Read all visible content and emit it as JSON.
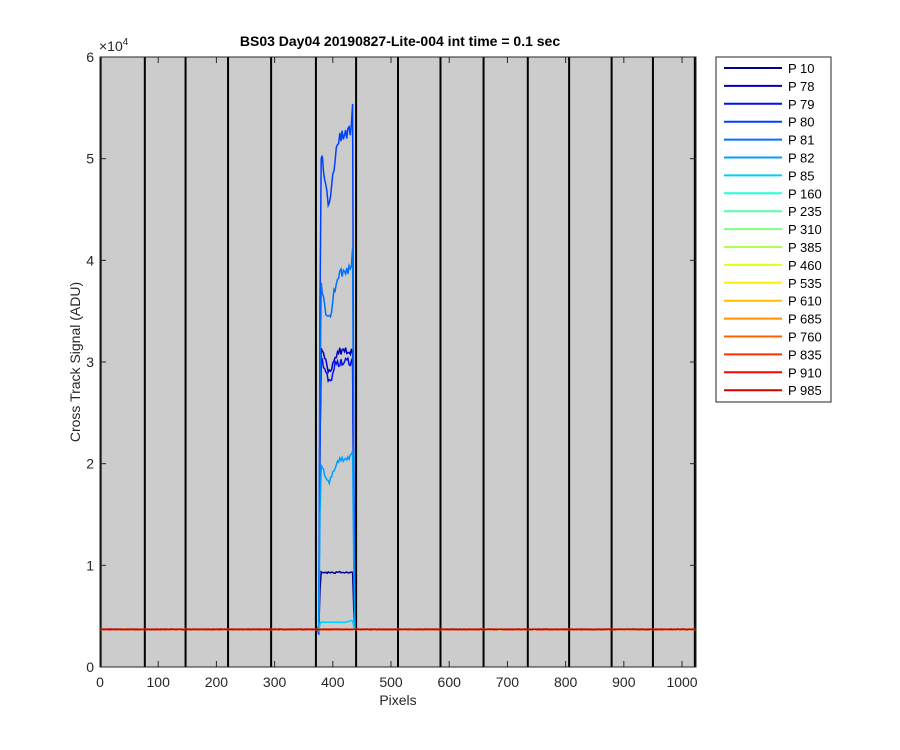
{
  "chart_data": {
    "type": "line",
    "title": "BS03 Day04 20190827-Lite-004 int time = 0.1 sec",
    "xlabel": "Pixels",
    "ylabel": "Cross Track Signal (ADU)",
    "xlim": [
      0,
      1024
    ],
    "ylim": [
      0,
      60000
    ],
    "xticks": [
      0,
      100,
      200,
      300,
      400,
      500,
      600,
      700,
      800,
      900,
      1000
    ],
    "xtick_labels": [
      "0",
      "100",
      "200",
      "300",
      "400",
      "500",
      "600",
      "700",
      "800",
      "900",
      "1000"
    ],
    "yticks": [
      0,
      10000,
      20000,
      30000,
      40000,
      50000,
      60000
    ],
    "ytick_labels": [
      "0",
      "1",
      "2",
      "3",
      "4",
      "5",
      "6"
    ],
    "y_exponent_label": "×10",
    "y_exponent_power": "4",
    "background_color": "#cccccc",
    "grid": false,
    "vertical_dividers_x": [
      1,
      77,
      147,
      220,
      294,
      371,
      440,
      512,
      585,
      659,
      735,
      806,
      879,
      950,
      1022
    ],
    "legend_placement": "outside-top-right",
    "series": [
      {
        "name": "P 10",
        "color": "#00008f",
        "baseline": 3700,
        "plateau": 9300,
        "profile": "flat"
      },
      {
        "name": "P 78",
        "color": "#0000bf",
        "baseline": 3700,
        "plateau": 31000,
        "profile": "mid"
      },
      {
        "name": "P 79",
        "color": "#0010ef",
        "baseline": 3700,
        "plateau": 30000,
        "profile": "mid"
      },
      {
        "name": "P 80",
        "color": "#0040ff",
        "baseline": 3700,
        "plateau": 51000,
        "profile": "dip"
      },
      {
        "name": "P 81",
        "color": "#0070ff",
        "baseline": 3700,
        "plateau": 38000,
        "profile": "dip"
      },
      {
        "name": "P 82",
        "color": "#00a0ff",
        "baseline": 3700,
        "plateau": 20000,
        "profile": "dip"
      },
      {
        "name": "P 85",
        "color": "#00d0ff",
        "baseline": 3700,
        "plateau": 4400,
        "profile": "low"
      },
      {
        "name": "P 160",
        "color": "#20ffdf",
        "baseline": 3700
      },
      {
        "name": "P 235",
        "color": "#50ffaf",
        "baseline": 3700
      },
      {
        "name": "P 310",
        "color": "#80ff80",
        "baseline": 3700
      },
      {
        "name": "P 385",
        "color": "#afff50",
        "baseline": 3700
      },
      {
        "name": "P 460",
        "color": "#dfff20",
        "baseline": 3700
      },
      {
        "name": "P 535",
        "color": "#ffef00",
        "baseline": 3700
      },
      {
        "name": "P 610",
        "color": "#ffbf00",
        "baseline": 3700
      },
      {
        "name": "P 685",
        "color": "#ff9000",
        "baseline": 3700
      },
      {
        "name": "P 760",
        "color": "#ff6000",
        "baseline": 3700
      },
      {
        "name": "P 835",
        "color": "#ff3000",
        "baseline": 3700
      },
      {
        "name": "P 910",
        "color": "#ff0000",
        "baseline": 3700
      },
      {
        "name": "P 985",
        "color": "#cf0000",
        "baseline": 3700
      }
    ],
    "signal_region_x": [
      376,
      437
    ]
  }
}
